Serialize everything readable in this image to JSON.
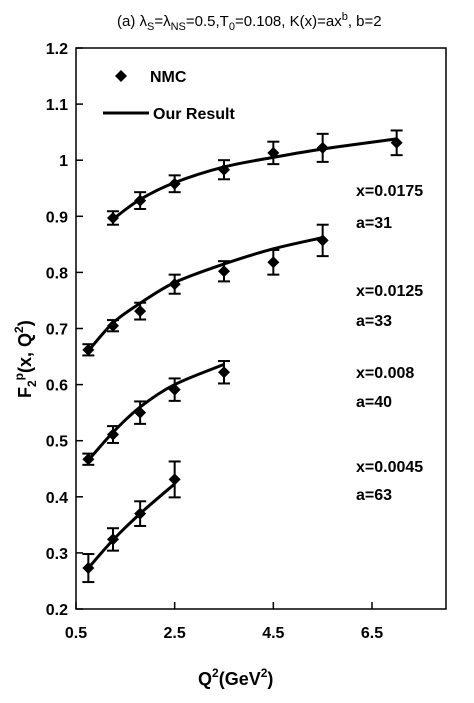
{
  "chart_data": {
    "type": "scatter",
    "title": {
      "prefix": "(a) λ",
      "s1": "S",
      "eq1": "=λ",
      "s2": "NS",
      "eq2": "=0.5,T",
      "s3": "0",
      "eq3": "=0.108, K(x)=ax",
      "sup": "b",
      "tail": ", b=2"
    },
    "xlabel": {
      "base": "Q",
      "sup1": "2",
      "mid": "(GeV",
      "sup2": "2",
      "tail": ")"
    },
    "ylabel": {
      "base": "F",
      "sub": "2",
      "sup": "p",
      "tail": "(x, Q",
      "sup2": "2",
      "end": ")"
    },
    "xlim": [
      0.5,
      8.0
    ],
    "ylim": [
      0.2,
      1.2
    ],
    "xticks": [
      "0.5",
      "2.5",
      "4.5",
      "6.5"
    ],
    "xtick_values": [
      0.5,
      2.5,
      4.5,
      6.5
    ],
    "yticks": [
      "0.2",
      "0.3",
      "0.4",
      "0.5",
      "0.6",
      "0.7",
      "0.8",
      "0.9",
      "1",
      "1.1",
      "1.2"
    ],
    "ytick_values": [
      0.2,
      0.3,
      0.4,
      0.5,
      0.6,
      0.7,
      0.8,
      0.9,
      1.0,
      1.1,
      1.2
    ],
    "legend": {
      "position": "top-left",
      "data_label": "NMC",
      "line_label": "Our Result"
    },
    "grid": false,
    "series": [
      {
        "x_label": "x=0.0175",
        "a_label": "a=31",
        "data": {
          "x": [
            1.25,
            1.8,
            2.5,
            3.5,
            4.5,
            5.5,
            7.0
          ],
          "y": [
            0.897,
            0.928,
            0.958,
            0.983,
            1.013,
            1.022,
            1.031
          ],
          "err": [
            0.012,
            0.015,
            0.015,
            0.017,
            0.02,
            0.025,
            0.022
          ]
        },
        "fit": {
          "x": [
            1.25,
            1.8,
            2.5,
            3.5,
            4.5,
            5.5,
            7.0
          ],
          "y": [
            0.895,
            0.93,
            0.96,
            0.988,
            1.005,
            1.02,
            1.038
          ]
        }
      },
      {
        "x_label": "x=0.0125",
        "a_label": "a=33",
        "data": {
          "x": [
            0.75,
            1.25,
            1.8,
            2.5,
            3.5,
            4.5,
            5.5
          ],
          "y": [
            0.662,
            0.705,
            0.731,
            0.779,
            0.802,
            0.818,
            0.857
          ],
          "err": [
            0.01,
            0.01,
            0.015,
            0.017,
            0.018,
            0.022,
            0.028
          ]
        },
        "fit": {
          "x": [
            0.75,
            1.25,
            1.8,
            2.5,
            3.5,
            4.5,
            5.5
          ],
          "y": [
            0.66,
            0.71,
            0.745,
            0.782,
            0.815,
            0.842,
            0.862
          ]
        }
      },
      {
        "x_label": "x=0.008",
        "a_label": "a=40",
        "data": {
          "x": [
            0.75,
            1.25,
            1.8,
            2.5,
            3.5
          ],
          "y": [
            0.467,
            0.511,
            0.55,
            0.591,
            0.622
          ],
          "err": [
            0.01,
            0.015,
            0.02,
            0.02,
            0.02
          ]
        },
        "fit": {
          "x": [
            0.75,
            1.25,
            1.8,
            2.5,
            3.5
          ],
          "y": [
            0.465,
            0.515,
            0.56,
            0.6,
            0.636
          ]
        }
      },
      {
        "x_label": "x=0.0045",
        "a_label": "a=63",
        "data": {
          "x": [
            0.75,
            1.25,
            1.8,
            2.5
          ],
          "y": [
            0.273,
            0.324,
            0.37,
            0.431
          ],
          "err": [
            0.025,
            0.02,
            0.022,
            0.032
          ]
        },
        "fit": {
          "x": [
            0.75,
            1.25,
            1.8,
            2.5
          ],
          "y": [
            0.273,
            0.323,
            0.37,
            0.423
          ]
        }
      }
    ]
  }
}
